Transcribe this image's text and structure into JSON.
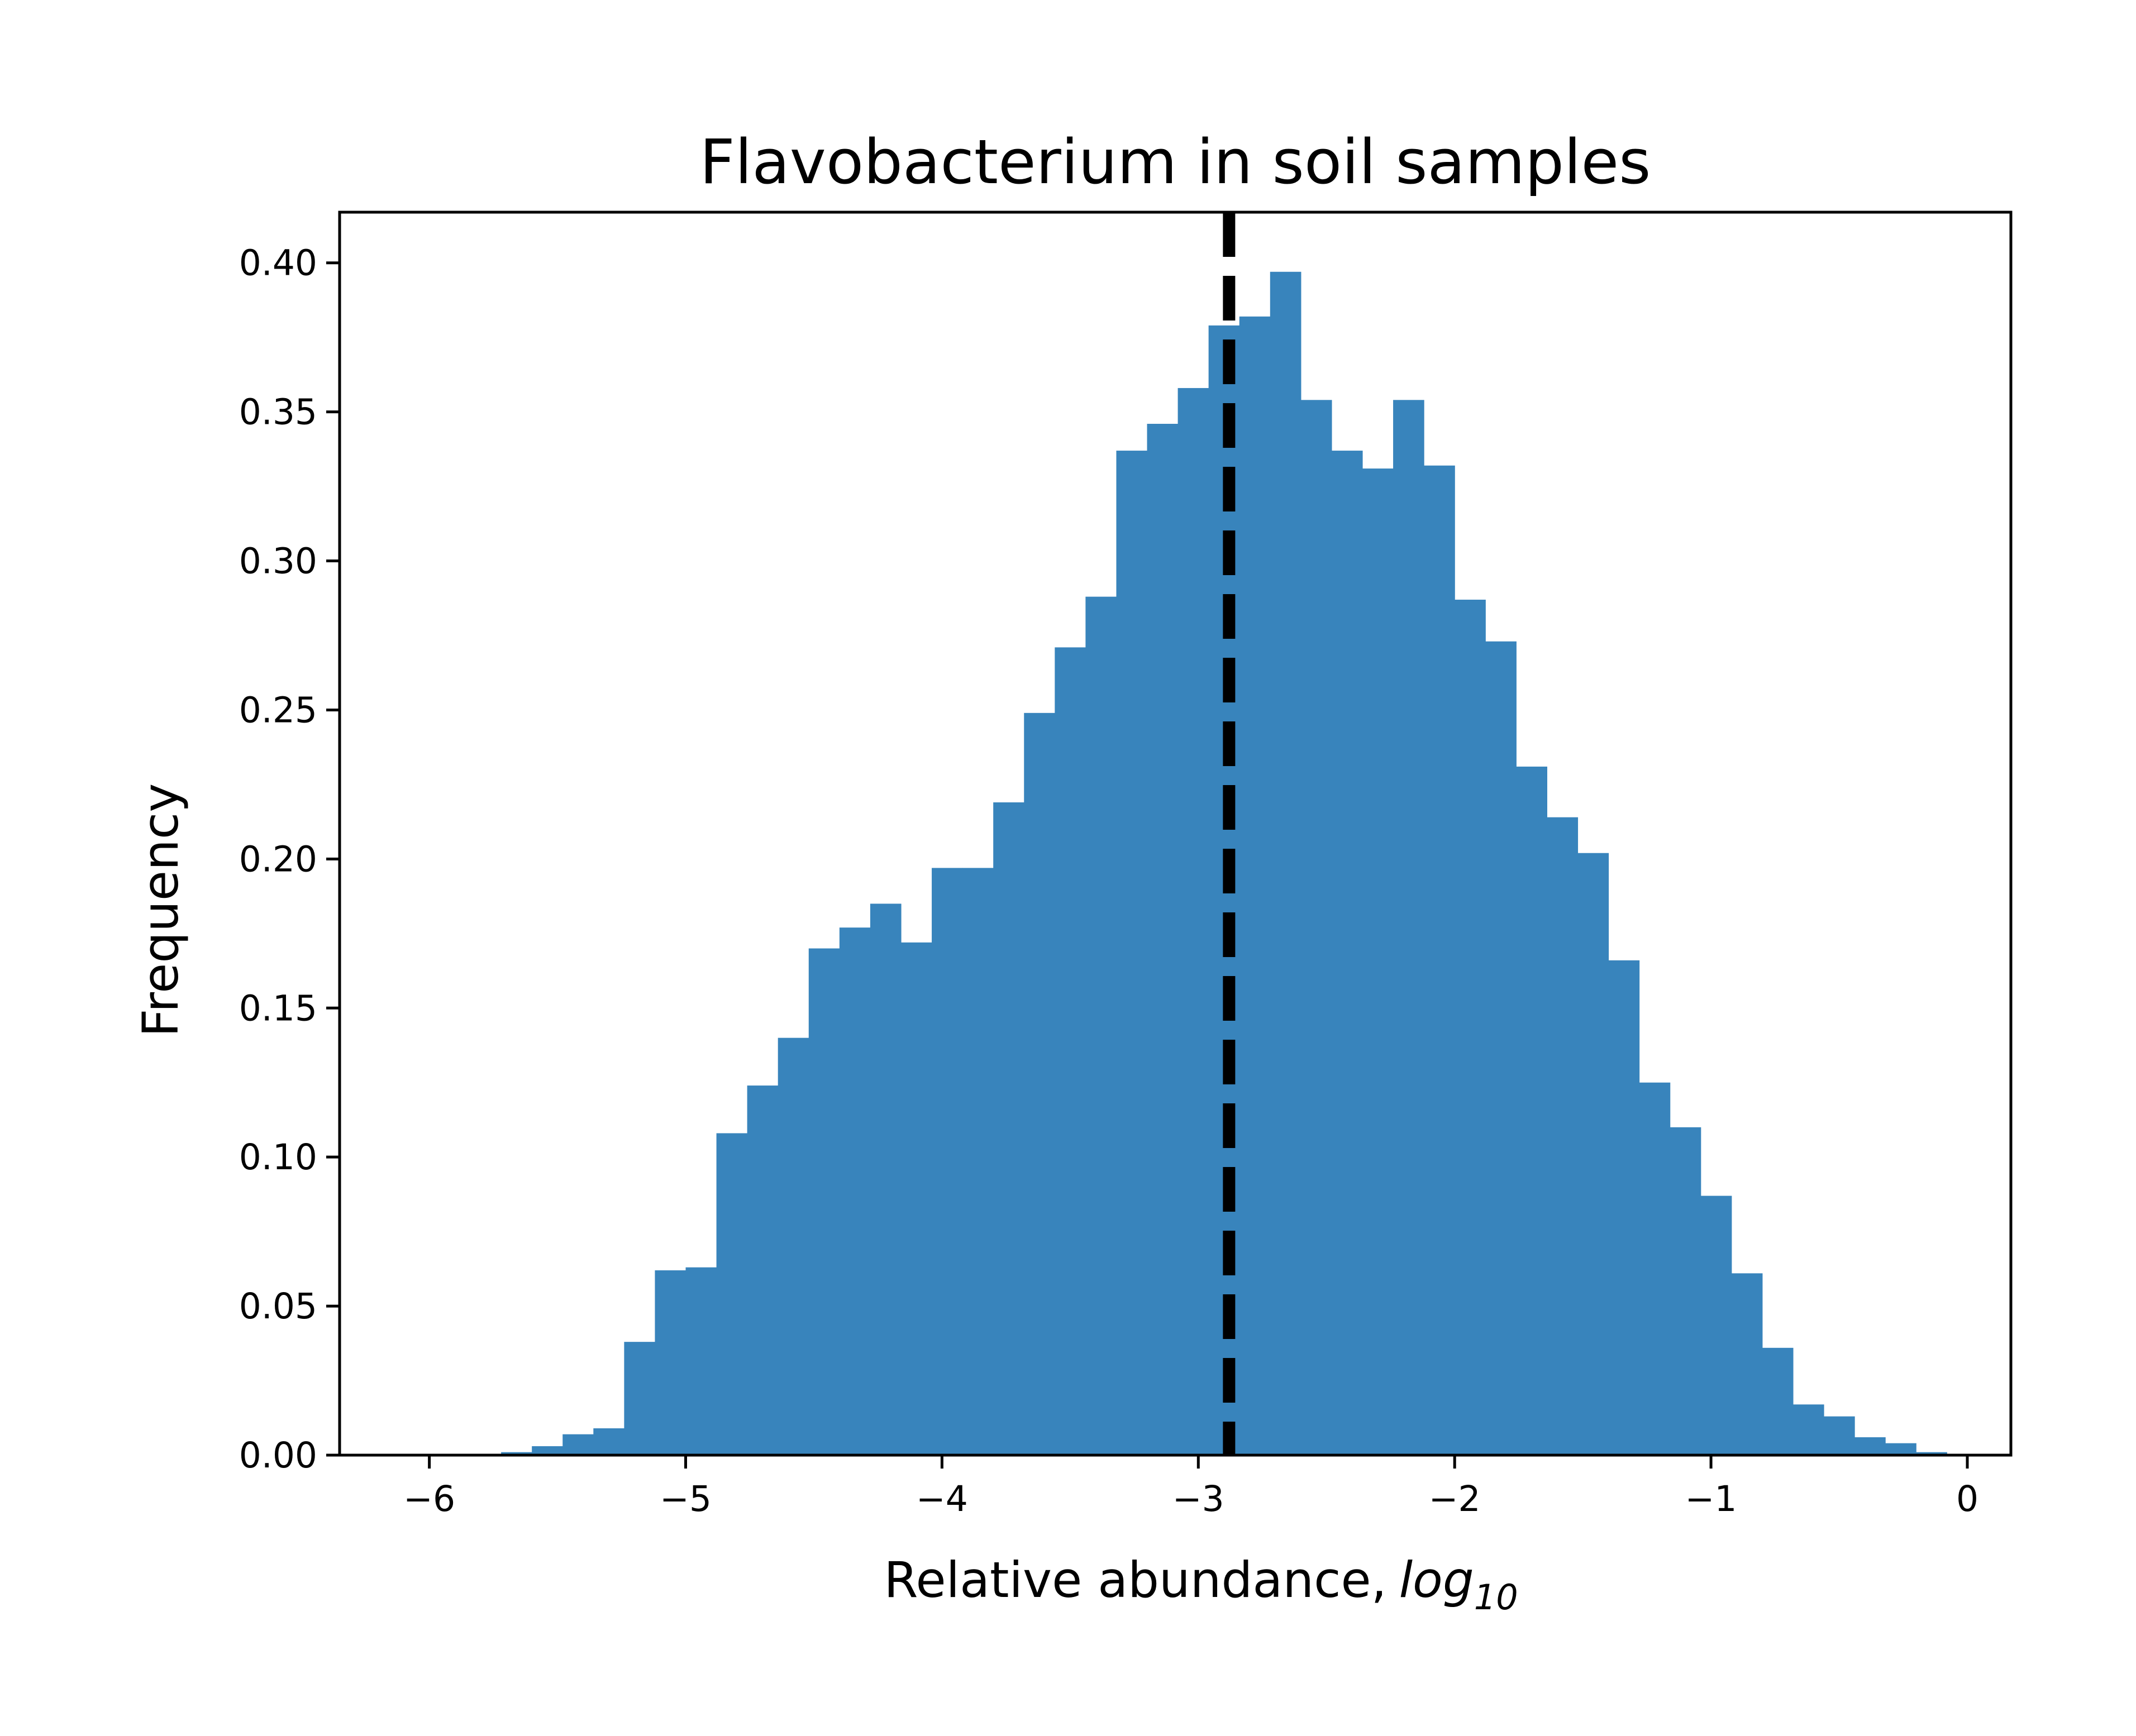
{
  "chart_data": {
    "type": "bar",
    "title": "Flavobacterium in soil samples",
    "xlabel": "Relative abundance,",
    "xlabel_math_base": "log",
    "xlabel_math_sub": "10",
    "ylabel": "Frequency",
    "xlim": [
      -6.35,
      0.17
    ],
    "ylim": [
      0,
      0.417
    ],
    "grid": false,
    "bar_color": "#3884bc",
    "x_ticks": [
      {
        "value": -6,
        "label": "−6"
      },
      {
        "value": -5,
        "label": "−5"
      },
      {
        "value": -4,
        "label": "−4"
      },
      {
        "value": -3,
        "label": "−3"
      },
      {
        "value": -2,
        "label": "−2"
      },
      {
        "value": -1,
        "label": "−1"
      },
      {
        "value": 0,
        "label": "0"
      }
    ],
    "y_ticks": [
      {
        "value": 0.0,
        "label": "0.00"
      },
      {
        "value": 0.05,
        "label": "0.05"
      },
      {
        "value": 0.1,
        "label": "0.10"
      },
      {
        "value": 0.15,
        "label": "0.15"
      },
      {
        "value": 0.2,
        "label": "0.20"
      },
      {
        "value": 0.25,
        "label": "0.25"
      },
      {
        "value": 0.3,
        "label": "0.30"
      },
      {
        "value": 0.35,
        "label": "0.35"
      },
      {
        "value": 0.4,
        "label": "0.40"
      }
    ],
    "bin_edges": [
      -5.72,
      -5.6,
      -5.48,
      -5.36,
      -5.24,
      -5.12,
      -5.0,
      -4.88,
      -4.76,
      -4.64,
      -4.52,
      -4.4,
      -4.28,
      -4.16,
      -4.04,
      -3.92,
      -3.8,
      -3.68,
      -3.56,
      -3.44,
      -3.32,
      -3.2,
      -3.08,
      -2.96,
      -2.84,
      -2.72,
      -2.6,
      -2.48,
      -2.36,
      -2.24,
      -2.12,
      -2.0,
      -1.88,
      -1.76,
      -1.64,
      -1.52,
      -1.4,
      -1.28,
      -1.16,
      -1.04,
      -0.92,
      -0.8,
      -0.68,
      -0.56,
      -0.44,
      -0.32,
      -0.2,
      -0.08
    ],
    "values": [
      0.001,
      0.003,
      0.007,
      0.009,
      0.038,
      0.062,
      0.063,
      0.108,
      0.124,
      0.14,
      0.17,
      0.177,
      0.185,
      0.172,
      0.197,
      0.197,
      0.219,
      0.249,
      0.271,
      0.288,
      0.337,
      0.346,
      0.358,
      0.379,
      0.382,
      0.397,
      0.354,
      0.337,
      0.331,
      0.354,
      0.332,
      0.287,
      0.273,
      0.231,
      0.214,
      0.202,
      0.166,
      0.125,
      0.11,
      0.087,
      0.061,
      0.036,
      0.017,
      0.013,
      0.006,
      0.004,
      0.001
    ],
    "reference_line": {
      "x": -2.88,
      "style": "dashed",
      "color": "#000000"
    }
  }
}
